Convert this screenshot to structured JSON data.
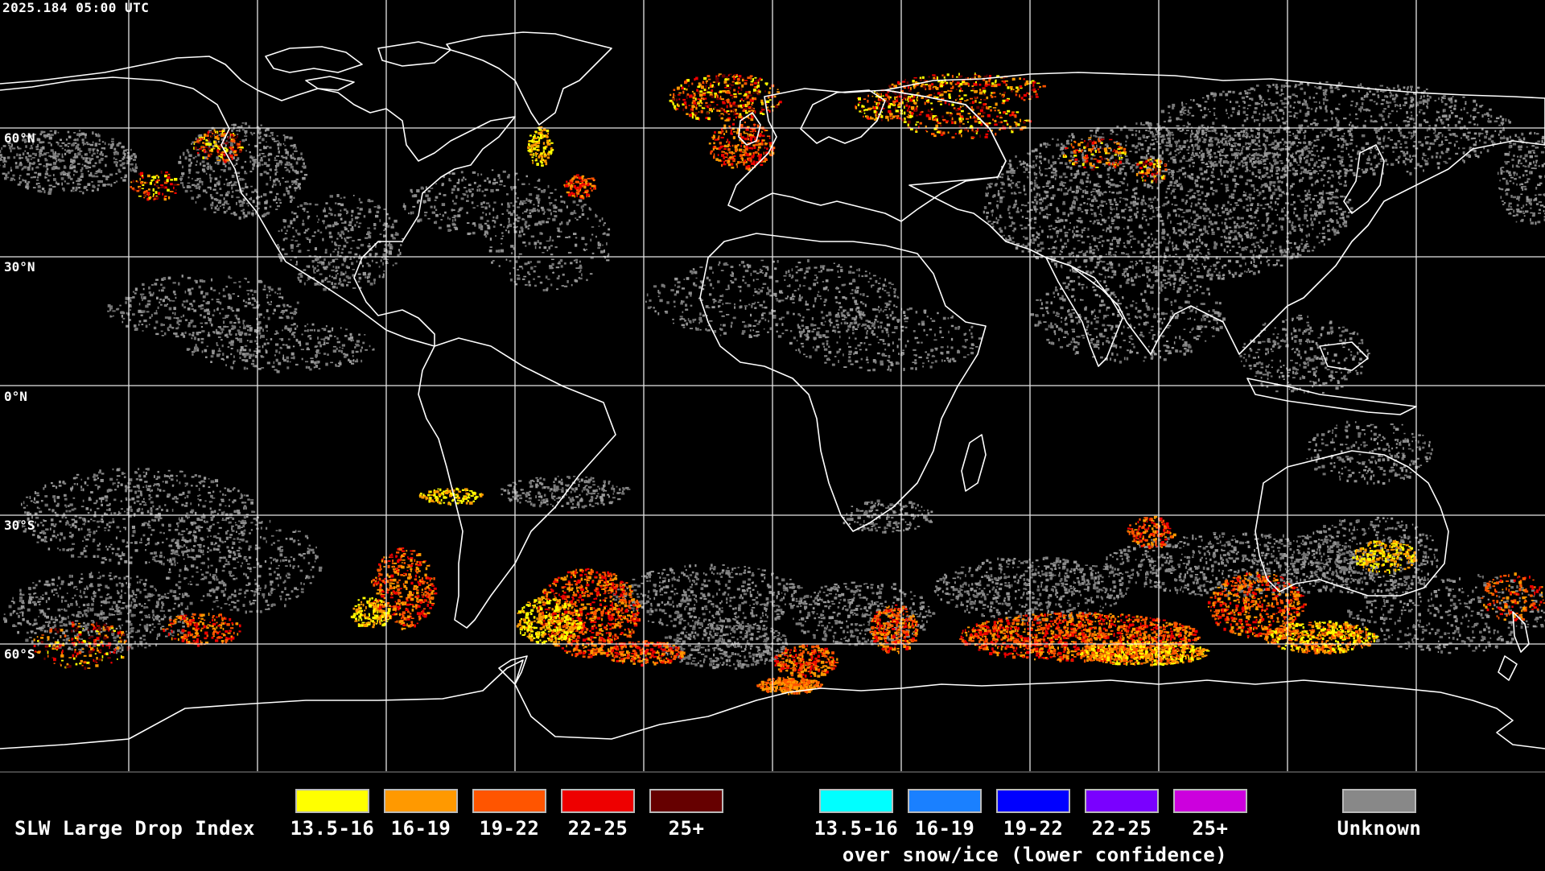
{
  "timestamp": "2025.184 05:00 UTC",
  "latitude_labels": [
    "60°N",
    "30°N",
    "0°N",
    "30°S",
    "60°S"
  ],
  "legend": {
    "title": "SLW Large Drop Index",
    "main_items": [
      {
        "label": "13.5-16",
        "color": "#ffff00"
      },
      {
        "label": "16-19",
        "color": "#ff9900"
      },
      {
        "label": "19-22",
        "color": "#ff5500"
      },
      {
        "label": "22-25",
        "color": "#ee0000"
      },
      {
        "label": "25+",
        "color": "#660000"
      }
    ],
    "snow_items": [
      {
        "label": "13.5-16",
        "color": "#00ffff"
      },
      {
        "label": "16-19",
        "color": "#1a80ff"
      },
      {
        "label": "19-22",
        "color": "#0000ff"
      },
      {
        "label": "22-25",
        "color": "#7a00ff"
      },
      {
        "label": "25+",
        "color": "#cc00dd"
      }
    ],
    "snow_caption": "over snow/ice (lower confidence)",
    "unknown": {
      "label": "Unknown",
      "color": "#888888"
    }
  },
  "colors": {
    "background": "#000000",
    "coastline": "#ffffff",
    "gridlines": "#ffffff",
    "unknown_cloud": "#8a8a8a"
  }
}
